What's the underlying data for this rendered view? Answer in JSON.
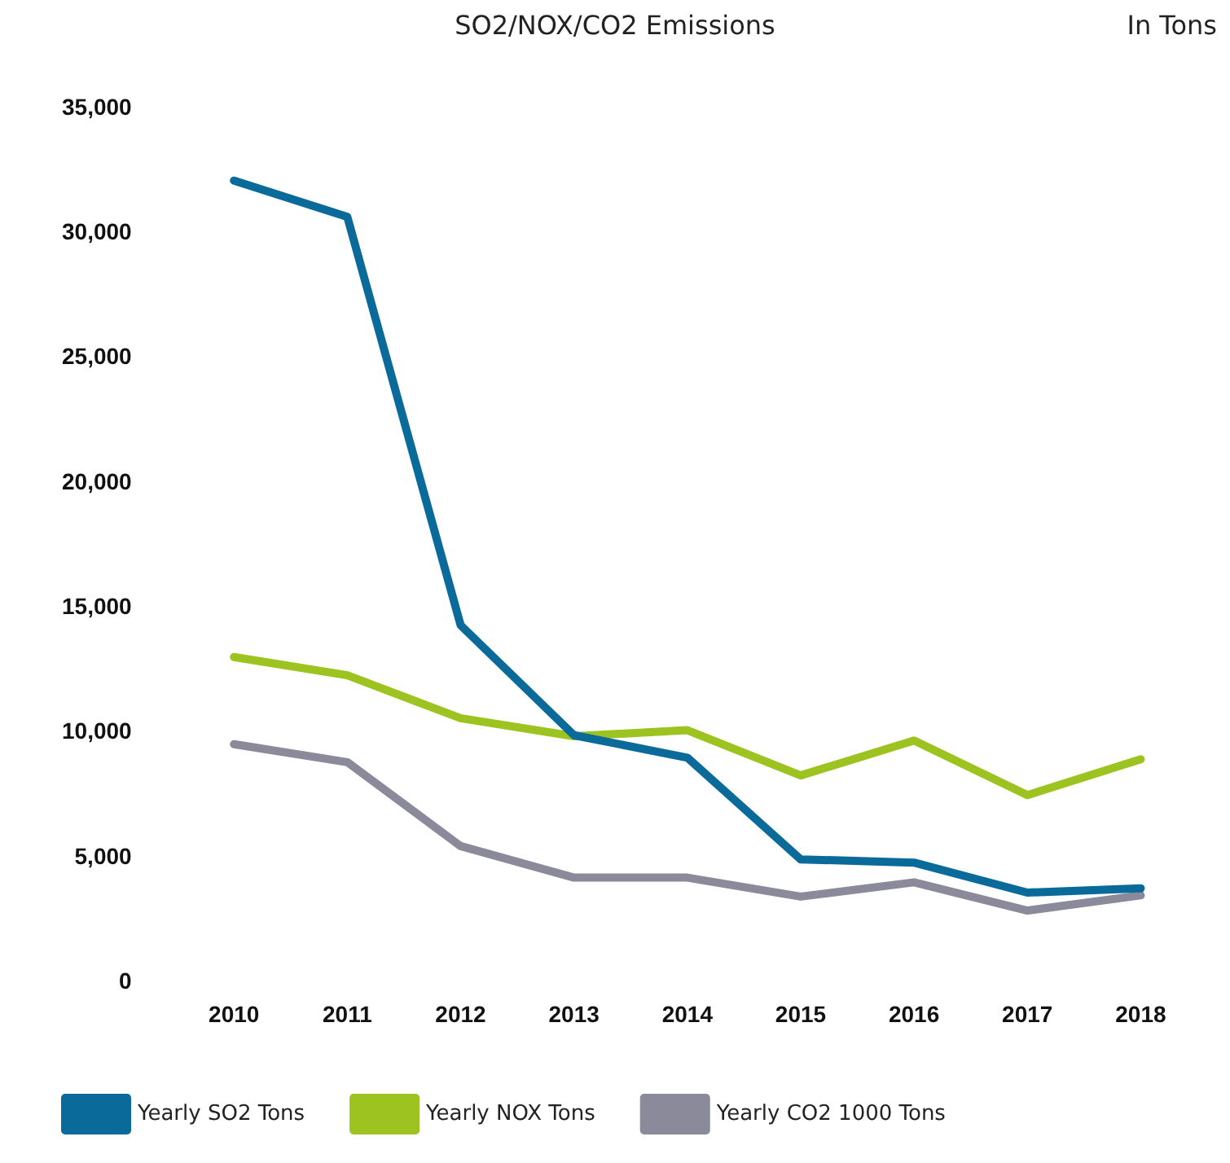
{
  "chart_data": {
    "type": "line",
    "title": "SO2/NOX/CO2 Emissions",
    "subtitle": "In Tons",
    "categories": [
      "2010",
      "2011",
      "2012",
      "2013",
      "2014",
      "2015",
      "2016",
      "2017",
      "2018"
    ],
    "series": [
      {
        "name": "Yearly SO2 Tons",
        "color": "#0a6a9a",
        "values": [
          32100,
          30650,
          14300,
          9900,
          9000,
          4930,
          4800,
          3600,
          3770
        ]
      },
      {
        "name": "Yearly NOX Tons",
        "color": "#9cc31f",
        "values": [
          13030,
          12300,
          10580,
          9860,
          10100,
          8290,
          9690,
          7500,
          8940
        ]
      },
      {
        "name": "Yearly CO2 1000 Tons",
        "color": "#8a8a9a",
        "values": [
          9540,
          8820,
          5460,
          4200,
          4200,
          3440,
          4010,
          2880,
          3490
        ]
      }
    ],
    "ylim": [
      0,
      35000
    ],
    "yticks": [
      0,
      {
        "value": 5000,
        "label": "5,000"
      },
      {
        "value": 10000,
        "label": "10,000"
      },
      {
        "value": 15000,
        "label": "15,000"
      },
      {
        "value": 20000,
        "label": "20,000"
      },
      {
        "value": 25000,
        "label": "25,000"
      },
      {
        "value": 30000,
        "label": "30,000"
      },
      {
        "value": 35000,
        "label": "35,000"
      }
    ],
    "grid": false,
    "legend": "bottom",
    "marker": "none",
    "line_style": "solid"
  }
}
